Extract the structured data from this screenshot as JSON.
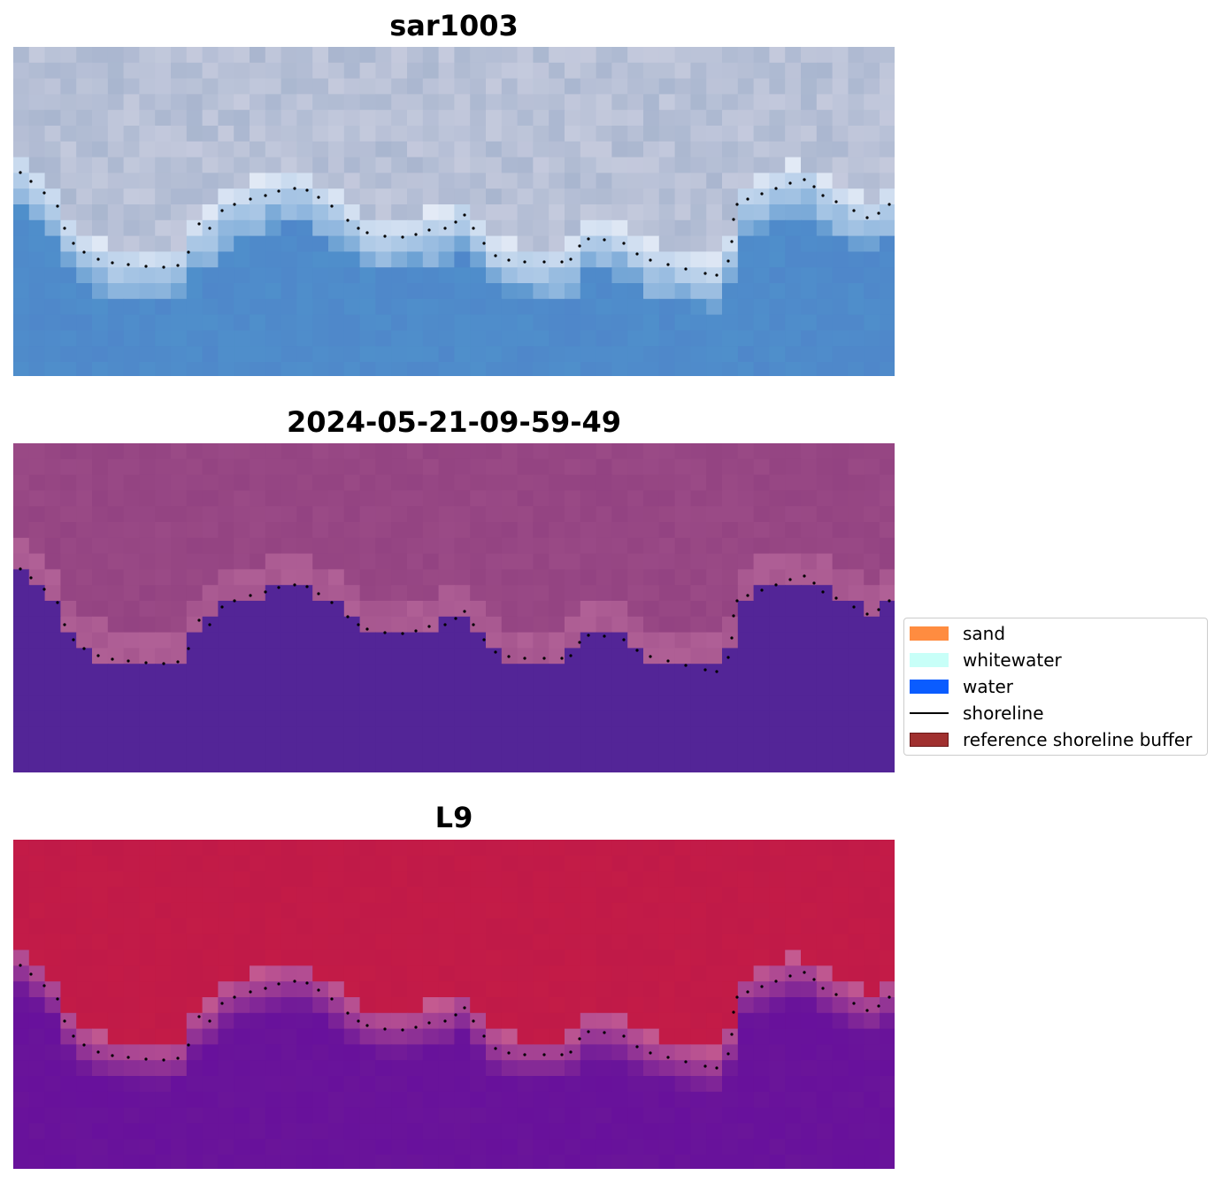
{
  "panels": [
    {
      "title": "sar1003",
      "palette": "rgb"
    },
    {
      "title": "2024-05-21-09-59-49",
      "palette": "classified"
    },
    {
      "title": "L9",
      "palette": "index"
    }
  ],
  "legend": {
    "items": [
      {
        "label": "sand",
        "kind": "patch",
        "color": "#ff8c40"
      },
      {
        "label": "whitewater",
        "kind": "patch",
        "color": "#c8fff8"
      },
      {
        "label": "water",
        "kind": "patch",
        "color": "#0a5cff"
      },
      {
        "label": "shoreline",
        "kind": "line",
        "color": "#000000"
      },
      {
        "label": "reference shoreline buffer",
        "kind": "patch",
        "color": "#a0302f",
        "edge": "#6b1818"
      }
    ]
  },
  "colors": {
    "rgb_water": "#4f8fcb",
    "rgb_land": "#a9b6cf",
    "rgb_whitewater": "#e3eaf6",
    "classified_water": "#532597",
    "classified_land": "#9a4a86",
    "classified_edge": "#b06096",
    "index_water": "#6a1599",
    "index_land": "#c01a48",
    "index_edge": "#c45a90"
  }
}
